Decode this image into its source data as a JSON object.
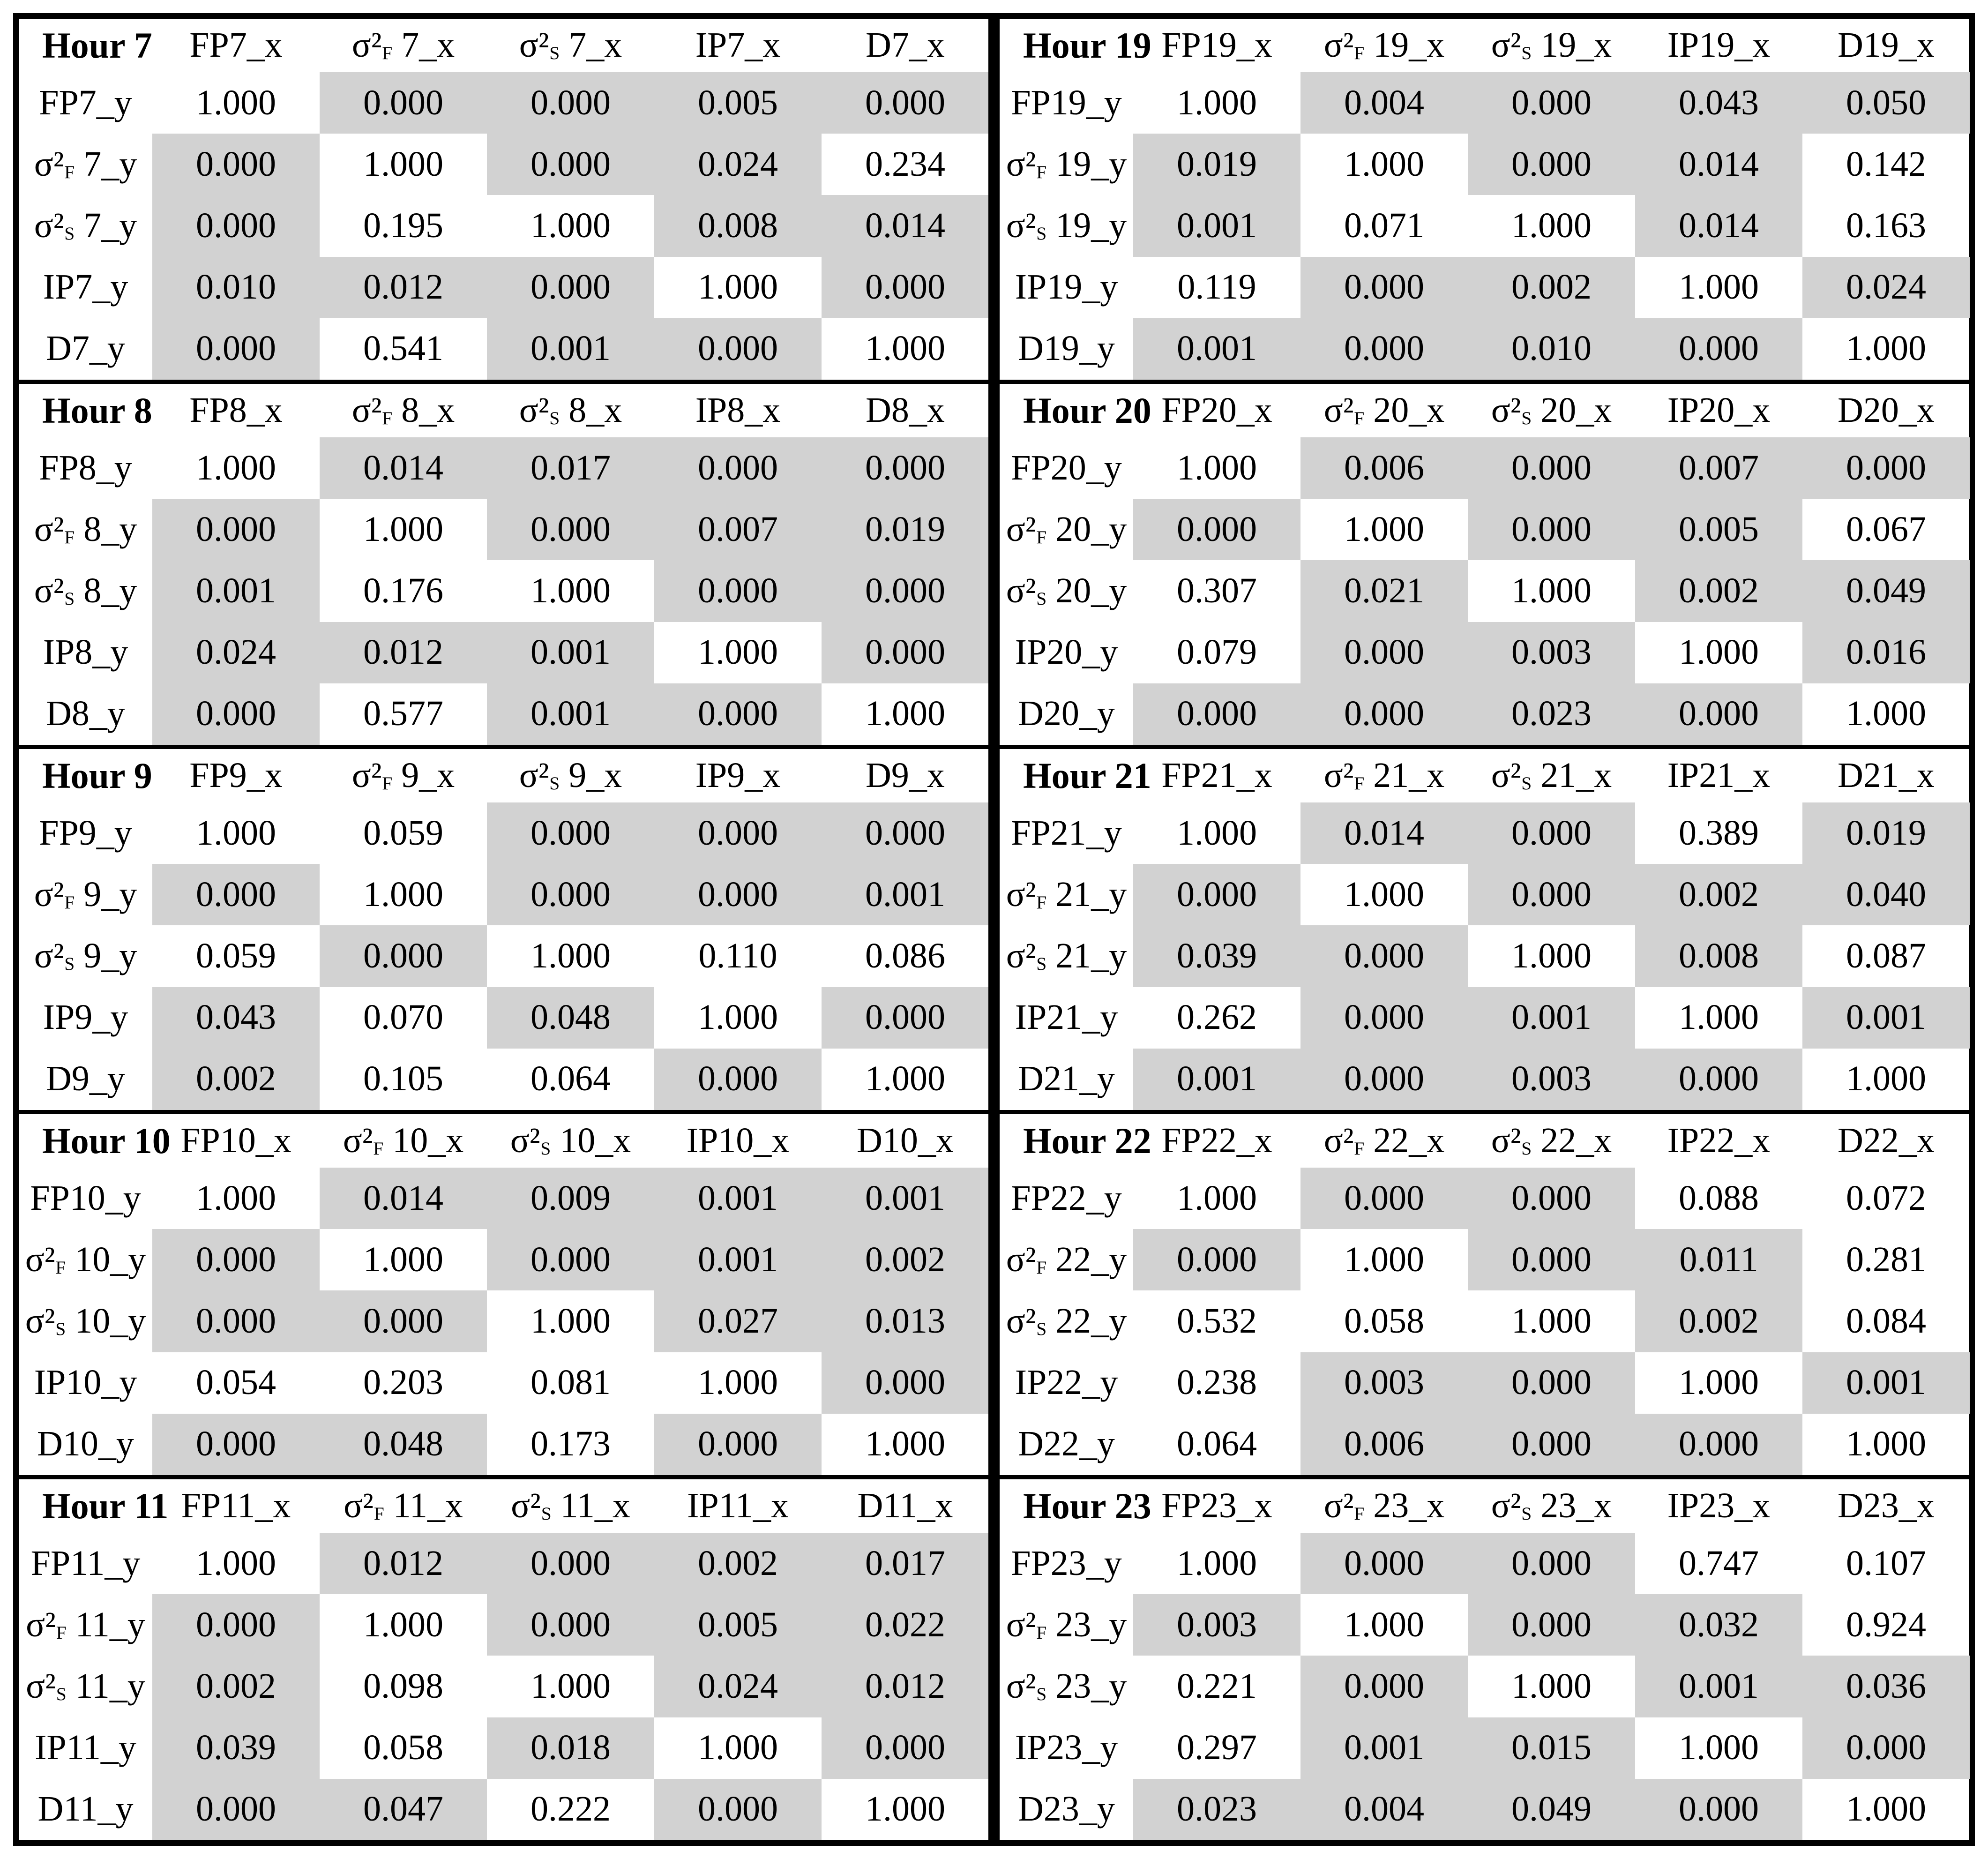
{
  "page": {
    "background": "#ffffff"
  },
  "table": {
    "shade_threshold": 0.05,
    "colors": {
      "shaded": "#d2d2d2",
      "unshaded": "#ffffff",
      "line": "#000000",
      "text": "#000000"
    },
    "layout": {
      "left_hours": [
        7,
        8,
        9,
        10,
        11
      ],
      "right_hours": [
        19,
        20,
        21,
        22,
        23
      ]
    },
    "blocks": [
      {
        "hour": 7,
        "title": "Hour 7",
        "col_headers": [
          "FP7_x",
          "σ²F 7_x",
          "σ²S 7_x",
          "IP7_x",
          "D7_x"
        ],
        "row_labels": [
          "FP7_y",
          "σ²F 7_y",
          "σ²S 7_y",
          "IP7_y",
          "D7_y"
        ],
        "rows": [
          [
            "1.000",
            "0.000",
            "0.000",
            "0.005",
            "0.000"
          ],
          [
            "0.000",
            "1.000",
            "0.000",
            "0.024",
            "0.234"
          ],
          [
            "0.000",
            "0.195",
            "1.000",
            "0.008",
            "0.014"
          ],
          [
            "0.010",
            "0.012",
            "0.000",
            "1.000",
            "0.000"
          ],
          [
            "0.000",
            "0.541",
            "0.001",
            "0.000",
            "1.000"
          ]
        ]
      },
      {
        "hour": 8,
        "title": "Hour 8",
        "col_headers": [
          "FP8_x",
          "σ²F 8_x",
          "σ²S 8_x",
          "IP8_x",
          "D8_x"
        ],
        "row_labels": [
          "FP8_y",
          "σ²F 8_y",
          "σ²S 8_y",
          "IP8_y",
          "D8_y"
        ],
        "rows": [
          [
            "1.000",
            "0.014",
            "0.017",
            "0.000",
            "0.000"
          ],
          [
            "0.000",
            "1.000",
            "0.000",
            "0.007",
            "0.019"
          ],
          [
            "0.001",
            "0.176",
            "1.000",
            "0.000",
            "0.000"
          ],
          [
            "0.024",
            "0.012",
            "0.001",
            "1.000",
            "0.000"
          ],
          [
            "0.000",
            "0.577",
            "0.001",
            "0.000",
            "1.000"
          ]
        ]
      },
      {
        "hour": 9,
        "title": "Hour 9",
        "col_headers": [
          "FP9_x",
          "σ²F 9_x",
          "σ²S 9_x",
          "IP9_x",
          "D9_x"
        ],
        "row_labels": [
          "FP9_y",
          "σ²F 9_y",
          "σ²S 9_y",
          "IP9_y",
          "D9_y"
        ],
        "rows": [
          [
            "1.000",
            "0.059",
            "0.000",
            "0.000",
            "0.000"
          ],
          [
            "0.000",
            "1.000",
            "0.000",
            "0.000",
            "0.001"
          ],
          [
            "0.059",
            "0.000",
            "1.000",
            "0.110",
            "0.086"
          ],
          [
            "0.043",
            "0.070",
            "0.048",
            "1.000",
            "0.000"
          ],
          [
            "0.002",
            "0.105",
            "0.064",
            "0.000",
            "1.000"
          ]
        ]
      },
      {
        "hour": 10,
        "title": "Hour 10",
        "col_headers": [
          "FP10_x",
          "σ²F 10_x",
          "σ²S 10_x",
          "IP10_x",
          "D10_x"
        ],
        "row_labels": [
          "FP10_y",
          "σ²F 10_y",
          "σ²S 10_y",
          "IP10_y",
          "D10_y"
        ],
        "rows": [
          [
            "1.000",
            "0.014",
            "0.009",
            "0.001",
            "0.001"
          ],
          [
            "0.000",
            "1.000",
            "0.000",
            "0.001",
            "0.002"
          ],
          [
            "0.000",
            "0.000",
            "1.000",
            "0.027",
            "0.013"
          ],
          [
            "0.054",
            "0.203",
            "0.081",
            "1.000",
            "0.000"
          ],
          [
            "0.000",
            "0.048",
            "0.173",
            "0.000",
            "1.000"
          ]
        ]
      },
      {
        "hour": 11,
        "title": "Hour 11",
        "col_headers": [
          "FP11_x",
          "σ²F 11_x",
          "σ²S 11_x",
          "IP11_x",
          "D11_x"
        ],
        "row_labels": [
          "FP11_y",
          "σ²F 11_y",
          "σ²S 11_y",
          "IP11_y",
          "D11_y"
        ],
        "rows": [
          [
            "1.000",
            "0.012",
            "0.000",
            "0.002",
            "0.017"
          ],
          [
            "0.000",
            "1.000",
            "0.000",
            "0.005",
            "0.022"
          ],
          [
            "0.002",
            "0.098",
            "1.000",
            "0.024",
            "0.012"
          ],
          [
            "0.039",
            "0.058",
            "0.018",
            "1.000",
            "0.000"
          ],
          [
            "0.000",
            "0.047",
            "0.222",
            "0.000",
            "1.000"
          ]
        ]
      },
      {
        "hour": 19,
        "title": "Hour 19",
        "col_headers": [
          "FP19_x",
          "σ²F 19_x",
          "σ²S 19_x",
          "IP19_x",
          "D19_x"
        ],
        "row_labels": [
          "FP19_y",
          "σ²F 19_y",
          "σ²S 19_y",
          "IP19_y",
          "D19_y"
        ],
        "rows": [
          [
            "1.000",
            "0.004",
            "0.000",
            "0.043",
            "0.050"
          ],
          [
            "0.019",
            "1.000",
            "0.000",
            "0.014",
            "0.142"
          ],
          [
            "0.001",
            "0.071",
            "1.000",
            "0.014",
            "0.163"
          ],
          [
            "0.119",
            "0.000",
            "0.002",
            "1.000",
            "0.024"
          ],
          [
            "0.001",
            "0.000",
            "0.010",
            "0.000",
            "1.000"
          ]
        ]
      },
      {
        "hour": 20,
        "title": "Hour 20",
        "col_headers": [
          "FP20_x",
          "σ²F 20_x",
          "σ²S 20_x",
          "IP20_x",
          "D20_x"
        ],
        "row_labels": [
          "FP20_y",
          "σ²F 20_y",
          "σ²S 20_y",
          "IP20_y",
          "D20_y"
        ],
        "rows": [
          [
            "1.000",
            "0.006",
            "0.000",
            "0.007",
            "0.000"
          ],
          [
            "0.000",
            "1.000",
            "0.000",
            "0.005",
            "0.067"
          ],
          [
            "0.307",
            "0.021",
            "1.000",
            "0.002",
            "0.049"
          ],
          [
            "0.079",
            "0.000",
            "0.003",
            "1.000",
            "0.016"
          ],
          [
            "0.000",
            "0.000",
            "0.023",
            "0.000",
            "1.000"
          ]
        ]
      },
      {
        "hour": 21,
        "title": "Hour 21",
        "col_headers": [
          "FP21_x",
          "σ²F 21_x",
          "σ²S 21_x",
          "IP21_x",
          "D21_x"
        ],
        "row_labels": [
          "FP21_y",
          "σ²F 21_y",
          "σ²S 21_y",
          "IP21_y",
          "D21_y"
        ],
        "rows": [
          [
            "1.000",
            "0.014",
            "0.000",
            "0.389",
            "0.019"
          ],
          [
            "0.000",
            "1.000",
            "0.000",
            "0.002",
            "0.040"
          ],
          [
            "0.039",
            "0.000",
            "1.000",
            "0.008",
            "0.087"
          ],
          [
            "0.262",
            "0.000",
            "0.001",
            "1.000",
            "0.001"
          ],
          [
            "0.001",
            "0.000",
            "0.003",
            "0.000",
            "1.000"
          ]
        ]
      },
      {
        "hour": 22,
        "title": "Hour 22",
        "col_headers": [
          "FP22_x",
          "σ²F 22_x",
          "σ²S 22_x",
          "IP22_x",
          "D22_x"
        ],
        "row_labels": [
          "FP22_y",
          "σ²F 22_y",
          "σ²S 22_y",
          "IP22_y",
          "D22_y"
        ],
        "rows": [
          [
            "1.000",
            "0.000",
            "0.000",
            "0.088",
            "0.072"
          ],
          [
            "0.000",
            "1.000",
            "0.000",
            "0.011",
            "0.281"
          ],
          [
            "0.532",
            "0.058",
            "1.000",
            "0.002",
            "0.084"
          ],
          [
            "0.238",
            "0.003",
            "0.000",
            "1.000",
            "0.001"
          ],
          [
            "0.064",
            "0.006",
            "0.000",
            "0.000",
            "1.000"
          ]
        ]
      },
      {
        "hour": 23,
        "title": "Hour 23",
        "col_headers": [
          "FP23_x",
          "σ²F 23_x",
          "σ²S 23_x",
          "IP23_x",
          "D23_x"
        ],
        "row_labels": [
          "FP23_y",
          "σ²F 23_y",
          "σ²S 23_y",
          "IP23_y",
          "D23_y"
        ],
        "rows": [
          [
            "1.000",
            "0.000",
            "0.000",
            "0.747",
            "0.107"
          ],
          [
            "0.003",
            "1.000",
            "0.000",
            "0.032",
            "0.924"
          ],
          [
            "0.221",
            "0.000",
            "1.000",
            "0.001",
            "0.036"
          ],
          [
            "0.297",
            "0.001",
            "0.015",
            "1.000",
            "0.000"
          ],
          [
            "0.023",
            "0.004",
            "0.049",
            "0.000",
            "1.000"
          ]
        ]
      }
    ]
  }
}
